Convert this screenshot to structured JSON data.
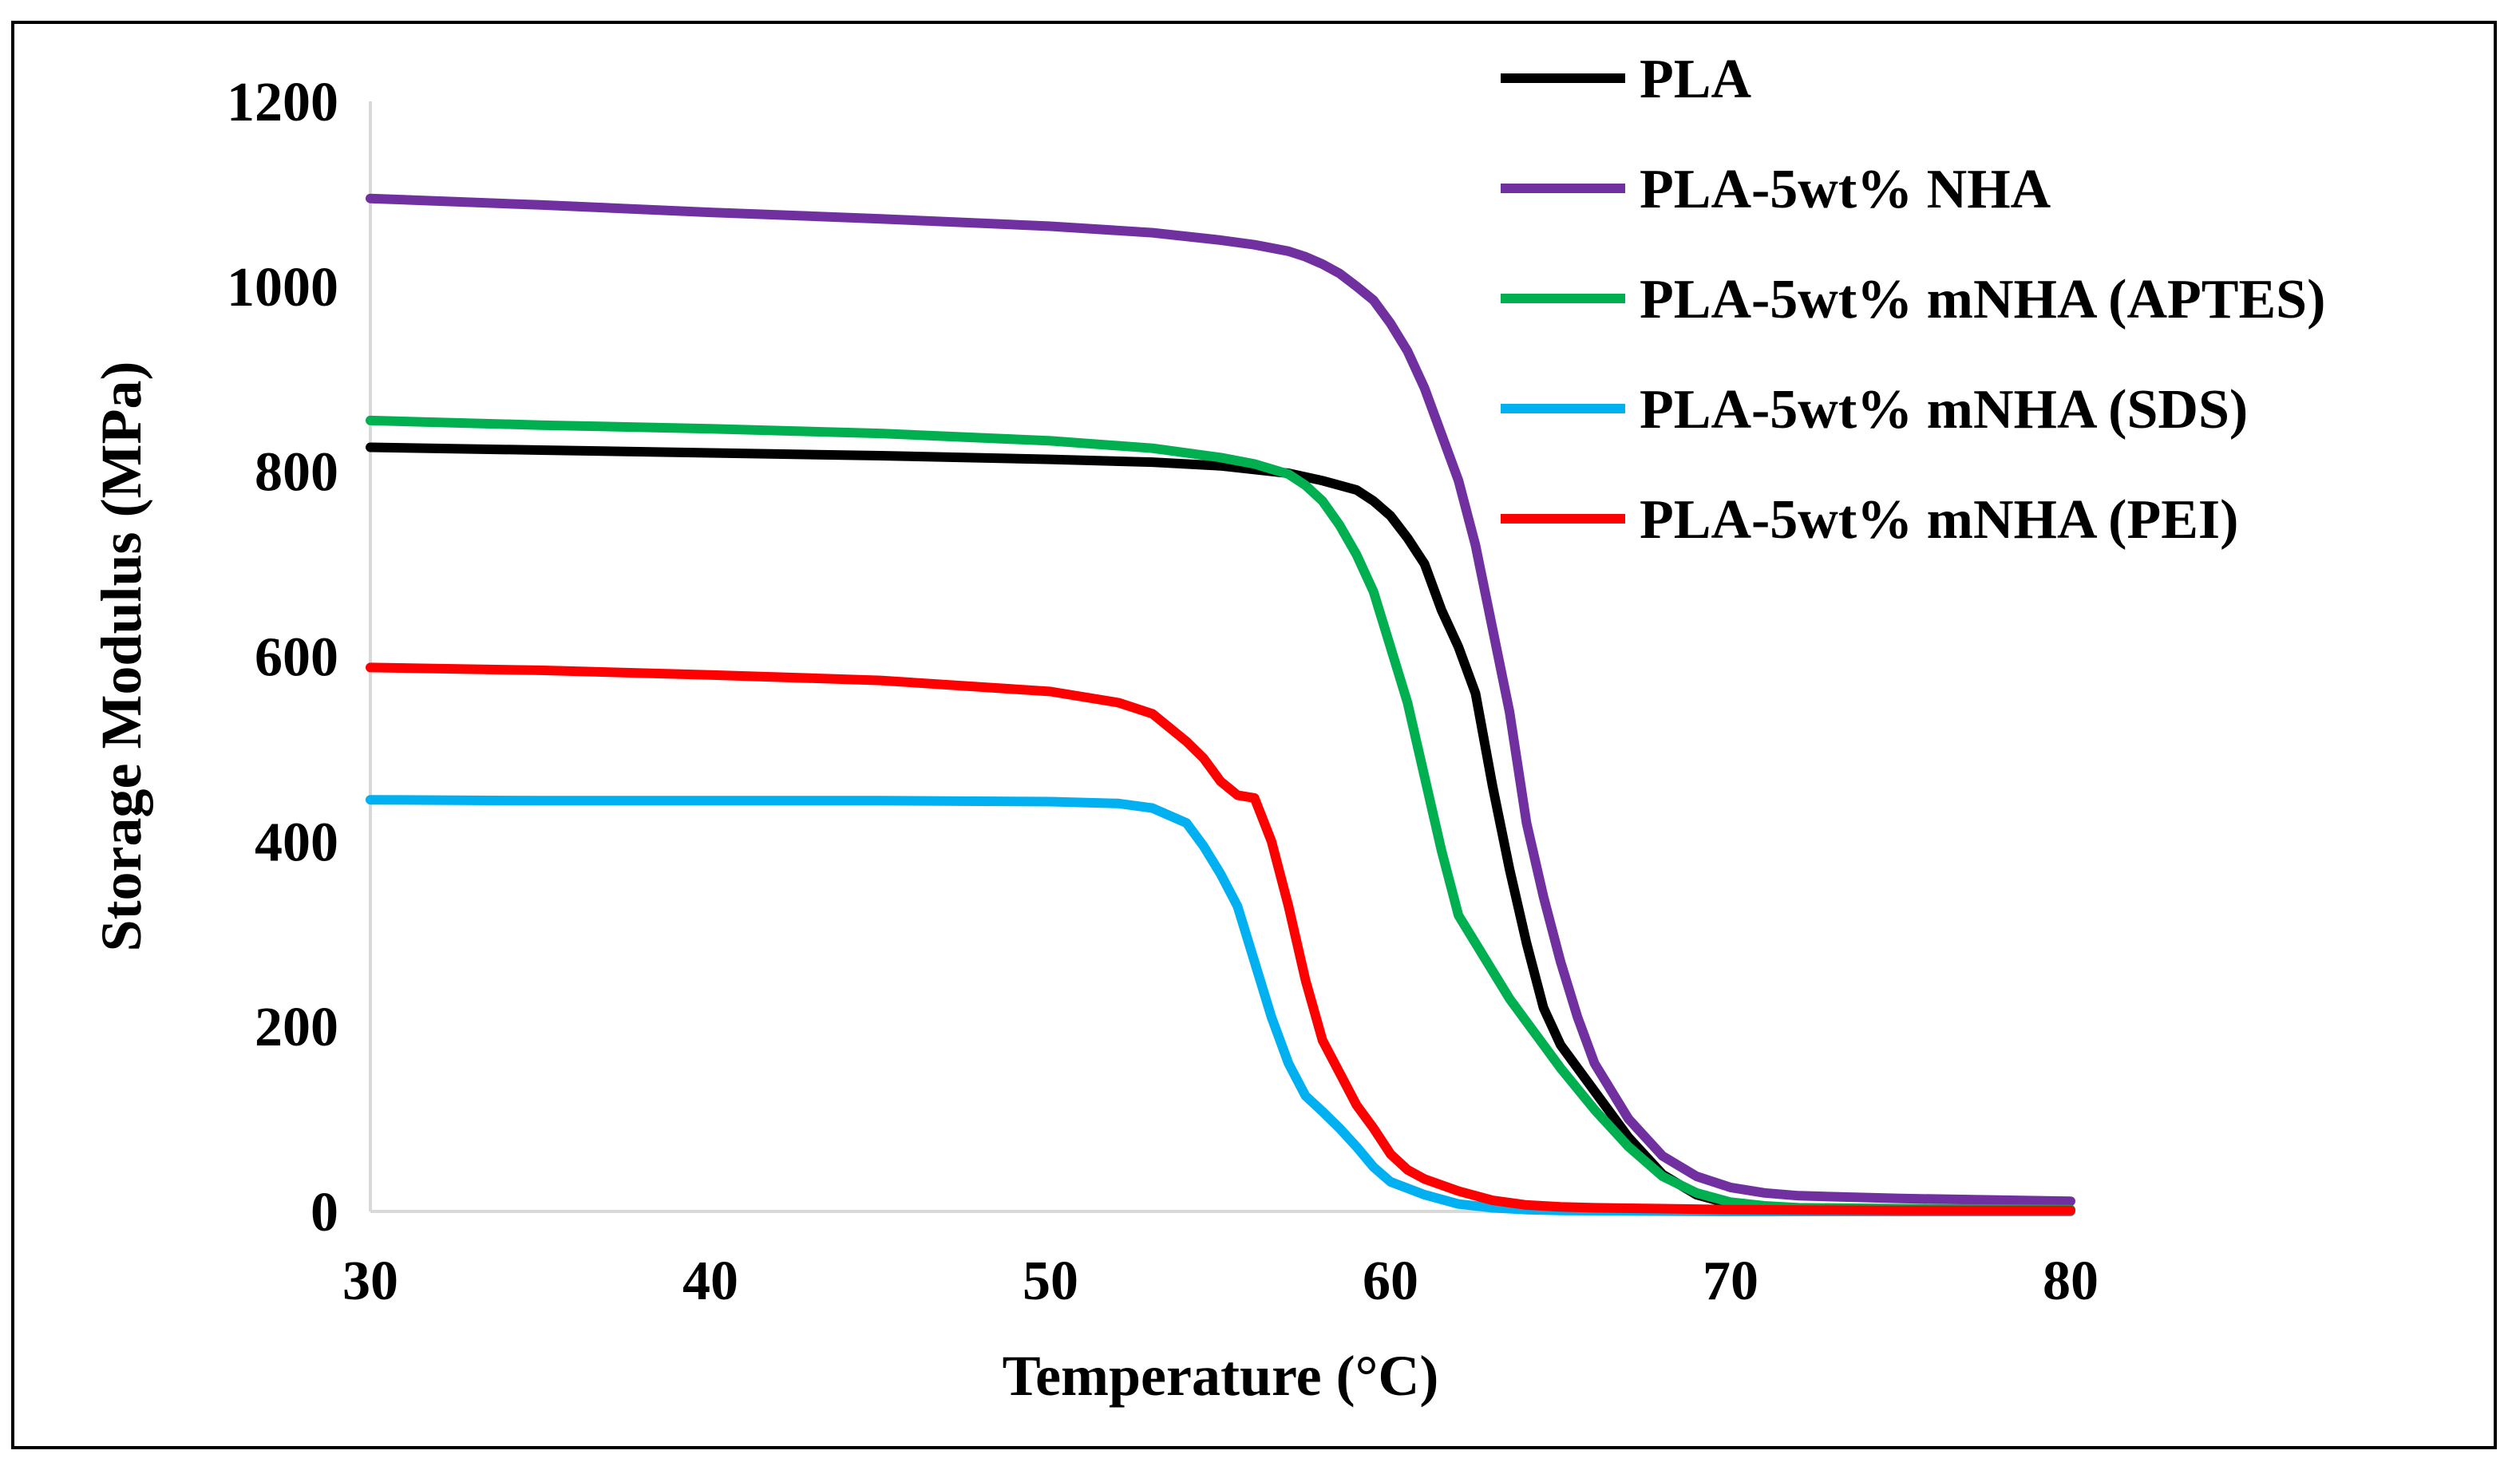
{
  "chart_data": {
    "type": "line",
    "title": "",
    "xlabel": "Temperature (°C)",
    "ylabel": "Storage Modulus (MPa)",
    "xlim": [
      30,
      80
    ],
    "ylim": [
      0,
      1200
    ],
    "xticks": [
      30,
      40,
      50,
      60,
      70,
      80
    ],
    "yticks": [
      0,
      200,
      400,
      600,
      800,
      1000,
      1200
    ],
    "xtick_labels": [
      "30",
      "40",
      "50",
      "60",
      "70",
      "80"
    ],
    "ytick_labels": [
      "0",
      "200",
      "400",
      "600",
      "800",
      "1000",
      "1200"
    ],
    "grid": false,
    "legend_position": "top-right",
    "series": [
      {
        "name": "PLA",
        "color": "#000000",
        "x": [
          30,
          35,
          40,
          45,
          50,
          53,
          55,
          57,
          58,
          59,
          59.5,
          60,
          60.5,
          61,
          61.5,
          62,
          62.5,
          63,
          63.5,
          64,
          64.5,
          65,
          66,
          67,
          68,
          69,
          70,
          72,
          75,
          80
        ],
        "y": [
          826,
          823,
          820,
          817,
          813,
          810,
          806,
          798,
          790,
          780,
          768,
          752,
          728,
          700,
          650,
          610,
          560,
          460,
          370,
          290,
          220,
          180,
          130,
          80,
          40,
          18,
          8,
          3,
          2,
          1
        ]
      },
      {
        "name": "PLA-5wt% NHA",
        "color": "#7030A0",
        "x": [
          30,
          35,
          40,
          45,
          50,
          53,
          55,
          56,
          57,
          57.5,
          58,
          58.5,
          59,
          59.5,
          60,
          60.5,
          61,
          61.5,
          62,
          62.5,
          63,
          63.5,
          64,
          64.5,
          65,
          65.5,
          66,
          67,
          68,
          69,
          70,
          71,
          72,
          75,
          80
        ],
        "y": [
          1095,
          1088,
          1080,
          1073,
          1065,
          1058,
          1050,
          1045,
          1038,
          1032,
          1024,
          1014,
          1000,
          985,
          960,
          930,
          890,
          840,
          790,
          720,
          630,
          540,
          420,
          340,
          270,
          210,
          160,
          100,
          60,
          38,
          26,
          20,
          17,
          14,
          11
        ]
      },
      {
        "name": "PLA-5wt% mNHA (APTES)",
        "color": "#00B050",
        "x": [
          30,
          35,
          40,
          45,
          50,
          53,
          55,
          56,
          57,
          57.5,
          58,
          58.5,
          59,
          59.5,
          60,
          60.5,
          61,
          61.5,
          62,
          62.5,
          63,
          63.5,
          64,
          64.5,
          65,
          66,
          67,
          68,
          69,
          70,
          71,
          72,
          75,
          80
        ],
        "y": [
          855,
          850,
          846,
          841,
          833,
          825,
          815,
          808,
          797,
          785,
          768,
          742,
          710,
          670,
          610,
          550,
          470,
          390,
          320,
          290,
          260,
          230,
          205,
          180,
          155,
          110,
          70,
          38,
          20,
          10,
          6,
          4,
          3,
          2
        ]
      },
      {
        "name": "PLA-5wt% mNHA (SDS)",
        "color": "#00B0F0",
        "x": [
          30,
          35,
          40,
          45,
          50,
          52,
          53,
          54,
          54.5,
          55,
          55.5,
          56,
          56.5,
          57,
          57.5,
          58,
          58.5,
          59,
          59.5,
          60,
          61,
          62,
          63,
          64,
          65,
          70,
          80
        ],
        "y": [
          445,
          444,
          444,
          444,
          443,
          441,
          436,
          420,
          395,
          365,
          330,
          270,
          210,
          160,
          125,
          108,
          90,
          70,
          48,
          32,
          18,
          8,
          4,
          2,
          1,
          0,
          0
        ]
      },
      {
        "name": "PLA-5wt% mNHA (PEI)",
        "color": "#FF0000",
        "x": [
          30,
          35,
          40,
          45,
          50,
          52,
          53,
          54,
          54.5,
          55,
          55.5,
          56,
          56.5,
          57,
          57.5,
          58,
          58.5,
          59,
          59.5,
          60,
          60.5,
          61,
          62,
          63,
          64,
          65,
          66,
          68,
          70,
          75,
          80
        ],
        "y": [
          588,
          585,
          580,
          574,
          562,
          550,
          538,
          508,
          490,
          465,
          450,
          447,
          400,
          330,
          250,
          185,
          150,
          115,
          90,
          62,
          45,
          35,
          22,
          12,
          7,
          5,
          4,
          3,
          2,
          1,
          1
        ]
      }
    ]
  }
}
